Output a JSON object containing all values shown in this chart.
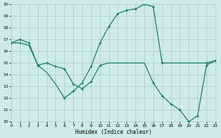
{
  "xlabel": "Humidex (Indice chaleur)",
  "background_color": "#ceeaea",
  "grid_color": "#aecece",
  "line_color": "#1a7a6e",
  "xlim": [
    0,
    23
  ],
  "ylim": [
    10,
    20
  ],
  "xticks": [
    0,
    1,
    2,
    3,
    4,
    5,
    6,
    7,
    8,
    9,
    10,
    11,
    12,
    13,
    14,
    15,
    16,
    17,
    18,
    19,
    20,
    21,
    22,
    23
  ],
  "yticks": [
    10,
    11,
    12,
    13,
    14,
    15,
    16,
    17,
    18,
    19,
    20
  ],
  "line1_x": [
    0,
    1,
    2,
    3,
    4,
    5,
    6,
    7,
    8,
    9,
    10,
    11,
    12,
    13,
    14,
    15,
    16,
    17,
    18,
    19,
    20,
    21,
    22,
    23
  ],
  "line1_y": [
    16.7,
    17.0,
    16.7,
    14.8,
    14.2,
    13.2,
    12.0,
    12.6,
    13.3,
    14.7,
    16.7,
    18.1,
    19.2,
    19.5,
    19.6,
    20.0,
    19.8,
    15.0,
    15.0,
    15.0,
    15.0,
    15.0,
    15.0,
    15.2
  ],
  "line1_mk_x": [
    0,
    1,
    2,
    3,
    6,
    7,
    8,
    9,
    10,
    11,
    12,
    13,
    14,
    15,
    16,
    17,
    22,
    23
  ],
  "line1_mk_y": [
    16.7,
    17.0,
    16.7,
    14.8,
    12.0,
    12.6,
    13.3,
    14.7,
    16.7,
    18.1,
    19.2,
    19.5,
    19.6,
    20.0,
    19.8,
    15.0,
    15.0,
    15.2
  ],
  "line2_x": [
    0,
    1,
    2,
    3,
    4,
    5,
    6,
    7,
    8,
    9,
    10,
    11,
    12,
    13,
    14,
    15,
    16,
    17,
    18,
    19,
    20,
    21,
    22,
    23
  ],
  "line2_y": [
    16.7,
    16.7,
    16.5,
    14.8,
    15.0,
    14.7,
    14.5,
    13.2,
    12.8,
    13.4,
    14.8,
    15.0,
    15.0,
    15.0,
    15.0,
    15.0,
    13.3,
    12.2,
    11.5,
    11.0,
    10.0,
    10.5,
    14.8,
    15.2
  ],
  "line2_mk_x": [
    0,
    1,
    3,
    4,
    5,
    6,
    7,
    8,
    9,
    10,
    16,
    17,
    18,
    19,
    20,
    21,
    22,
    23
  ],
  "line2_mk_y": [
    16.7,
    16.7,
    14.8,
    15.0,
    14.7,
    14.5,
    13.2,
    12.8,
    13.4,
    14.8,
    13.3,
    12.2,
    11.5,
    11.0,
    10.0,
    10.5,
    14.8,
    15.2
  ]
}
